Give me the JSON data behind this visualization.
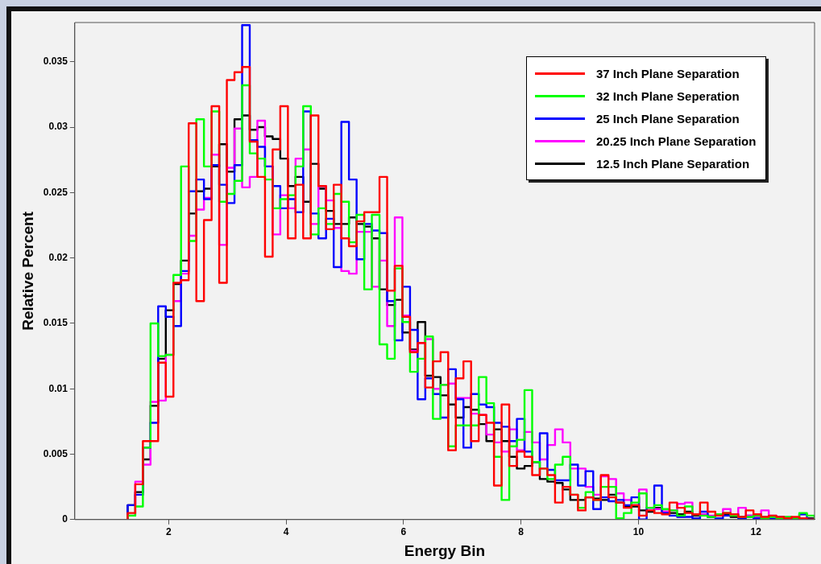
{
  "chart_data": {
    "type": "histogram",
    "xlabel": "Energy Bin",
    "ylabel": "Relative Percent",
    "xlim": [
      0.4,
      13
    ],
    "xticks": [
      2,
      4,
      6,
      8,
      10,
      12
    ],
    "ylim": [
      0,
      0.038
    ],
    "yticks": [
      0,
      0.005,
      0.01,
      0.015,
      0.02,
      0.025,
      0.03,
      0.035
    ],
    "grid": false,
    "legend": "top right",
    "bins": [
      1.3,
      1.43,
      1.56,
      1.69,
      1.82,
      1.95,
      2.08,
      2.21,
      2.34,
      2.47,
      2.6,
      2.73,
      2.86,
      2.99,
      3.12,
      3.25,
      3.38,
      3.51,
      3.64,
      3.77,
      3.9,
      4.03,
      4.16,
      4.29,
      4.42,
      4.55,
      4.68,
      4.81,
      4.94,
      5.07,
      5.2,
      5.33,
      5.46,
      5.59,
      5.72,
      5.85,
      5.98,
      6.11,
      6.24,
      6.37,
      6.5,
      6.63,
      6.76,
      6.89,
      7.02,
      7.15,
      7.28,
      7.41,
      7.54,
      7.67,
      7.8,
      7.93,
      8.06,
      8.19,
      8.32,
      8.45,
      8.58,
      8.71,
      8.84,
      8.97,
      9.1,
      9.23,
      9.36,
      9.49,
      9.62,
      9.75,
      9.88,
      10.01,
      10.14,
      10.27,
      10.4,
      10.53,
      10.66,
      10.79,
      10.92,
      11.05,
      11.18,
      11.31,
      11.44,
      11.57,
      11.7,
      11.83,
      11.96,
      12.09,
      12.22,
      12.35,
      12.48,
      12.61,
      12.74,
      12.87,
      13.0
    ],
    "series": [
      {
        "name": "37 Inch Plane Separation",
        "color": "#ff0000",
        "values": [
          0.0005,
          0.0027,
          0.006,
          0.006,
          0.012,
          0.0094,
          0.0181,
          0.0183,
          0.0303,
          0.0167,
          0.0229,
          0.0316,
          0.0181,
          0.0336,
          0.0342,
          0.0346,
          0.0289,
          0.0262,
          0.0201,
          0.0283,
          0.0316,
          0.0215,
          0.0256,
          0.0215,
          0.0309,
          0.0255,
          0.0222,
          0.0256,
          0.0215,
          0.0209,
          0.0228,
          0.0235,
          0.0235,
          0.0262,
          0.0175,
          0.0194,
          0.0155,
          0.0128,
          0.0135,
          0.0101,
          0.0121,
          0.0128,
          0.0053,
          0.0108,
          0.0121,
          0.006,
          0.008,
          0.0074,
          0.0026,
          0.0088,
          0.0041,
          0.0052,
          0.0048,
          0.0034,
          0.0039,
          0.0034,
          0.0013,
          0.0025,
          0.0019,
          0.0007,
          0.0017,
          0.0015,
          0.0034,
          0.0017,
          0.0013,
          0.0009,
          0.0011,
          0.0003,
          0.0007,
          0.0005,
          0.0004,
          0.0013,
          0.0009,
          0.0005,
          0.0004,
          0.0013,
          0.0006,
          0.0003,
          0.0005,
          0.0004,
          0.0002,
          0.0007,
          0.0004,
          0.0002,
          0.0003,
          0.0002,
          0.0001,
          0.0002,
          0.0001,
          0
        ]
      },
      {
        "name": "32 Inch Plane Seperation",
        "color": "#00ff00",
        "values": [
          0.0003,
          0.001,
          0.0055,
          0.015,
          0.0125,
          0.0126,
          0.0187,
          0.027,
          0.0213,
          0.0306,
          0.027,
          0.0312,
          0.0243,
          0.0249,
          0.0259,
          0.0332,
          0.028,
          0.0276,
          0.026,
          0.0238,
          0.0245,
          0.0248,
          0.027,
          0.0316,
          0.0218,
          0.0238,
          0.0226,
          0.0249,
          0.0243,
          0.0212,
          0.0233,
          0.0176,
          0.0233,
          0.0134,
          0.0123,
          0.0192,
          0.0151,
          0.0113,
          0.0123,
          0.014,
          0.0077,
          0.0103,
          0.0056,
          0.0072,
          0.0072,
          0.0072,
          0.0109,
          0.0089,
          0.0048,
          0.0015,
          0.0056,
          0.0061,
          0.0099,
          0.0044,
          0.0039,
          0.0031,
          0.0042,
          0.0048,
          0.0019,
          0.0009,
          0.0021,
          0.0015,
          0.0025,
          0.0025,
          0.0001,
          0.0005,
          0.0013,
          0.002,
          0.0009,
          0.0011,
          0.0008,
          0.0007,
          0.0003,
          0.001,
          0.0004,
          0.0003,
          0.0002,
          0.0004,
          0.0005,
          0.0003,
          0.0002,
          0.0002,
          0.0003,
          0.0001,
          0.0002,
          0.0001,
          0.0002,
          0.0001,
          0.0005,
          0.0003
        ]
      },
      {
        "name": "25 Inch Plane Separation",
        "color": "#0000ff",
        "values": [
          0.0011,
          0.0019,
          0.0055,
          0.0074,
          0.0163,
          0.0155,
          0.0148,
          0.019,
          0.0251,
          0.026,
          0.0245,
          0.0271,
          0.0256,
          0.0242,
          0.0271,
          0.0378,
          0.029,
          0.0285,
          0.027,
          0.0255,
          0.0238,
          0.0245,
          0.0235,
          0.0312,
          0.0234,
          0.0215,
          0.023,
          0.0193,
          0.0304,
          0.026,
          0.0199,
          0.0226,
          0.0221,
          0.0219,
          0.0167,
          0.0137,
          0.0178,
          0.0145,
          0.0092,
          0.0108,
          0.0096,
          0.0078,
          0.0115,
          0.0092,
          0.0055,
          0.0096,
          0.0088,
          0.0086,
          0.0074,
          0.0071,
          0.006,
          0.0077,
          0.0052,
          0.0044,
          0.0066,
          0.0038,
          0.003,
          0.003,
          0.0042,
          0.0026,
          0.0037,
          0.0008,
          0.0017,
          0.0014,
          0.0015,
          0.0011,
          0.0017,
          0,
          0.0009,
          0.0026,
          0.0005,
          0.0003,
          0.0002,
          0.0002,
          0.0001,
          0.0006,
          0.0002,
          0.0001,
          0.0003,
          0.0004,
          0.0001,
          0.0002,
          0.0001,
          0.0002,
          0.0001,
          0.0002,
          0.0001,
          0.0001,
          0.0004,
          0
        ]
      },
      {
        "name": "20.25 Inch Plane Separation",
        "color": "#ff00ff",
        "values": [
          0.0003,
          0.0029,
          0.0042,
          0.009,
          0.0091,
          0.0126,
          0.0167,
          0.0188,
          0.0217,
          0.0237,
          0.0246,
          0.0279,
          0.021,
          0.0269,
          0.0299,
          0.0254,
          0.0262,
          0.0305,
          0.027,
          0.0218,
          0.0248,
          0.0238,
          0.0276,
          0.0283,
          0.0226,
          0.0255,
          0.0244,
          0.0223,
          0.019,
          0.0188,
          0.022,
          0.022,
          0.0178,
          0.0198,
          0.0148,
          0.0231,
          0.0156,
          0.0129,
          0.0135,
          0.0138,
          0.01,
          0.0103,
          0.0104,
          0.0093,
          0.0093,
          0.0081,
          0.008,
          0.0065,
          0.0059,
          0.0052,
          0.0069,
          0.0053,
          0.0067,
          0.0059,
          0.0046,
          0.0057,
          0.0069,
          0.0059,
          0.0039,
          0.0039,
          0.0025,
          0.0019,
          0.0033,
          0.0031,
          0.002,
          0.0015,
          0.0011,
          0.0023,
          0.0009,
          0.0008,
          0.0006,
          0.0007,
          0.0012,
          0.0013,
          0.0004,
          0.0004,
          0.0003,
          0.0003,
          0.0008,
          0.0003,
          0.0009,
          0.0003,
          0.0002,
          0.0007,
          0.0003,
          0.0002,
          0.0002,
          0.0001,
          0.0001,
          0
        ]
      },
      {
        "name": "12.5 Inch Plane Separation",
        "color": "#000000",
        "values": [
          0.0011,
          0.0021,
          0.0046,
          0.0087,
          0.0123,
          0.016,
          0.018,
          0.0198,
          0.0234,
          0.0251,
          0.0253,
          0.027,
          0.0287,
          0.0266,
          0.0306,
          0.0309,
          0.0298,
          0.03,
          0.0293,
          0.0291,
          0.0276,
          0.0255,
          0.0262,
          0.0243,
          0.0272,
          0.0253,
          0.0236,
          0.0226,
          0.0226,
          0.0231,
          0.0226,
          0.0224,
          0.0215,
          0.0176,
          0.0164,
          0.0168,
          0.0143,
          0.013,
          0.0151,
          0.011,
          0.0109,
          0.0095,
          0.0088,
          0.0078,
          0.0086,
          0.0084,
          0.0073,
          0.006,
          0.0069,
          0.006,
          0.0048,
          0.0039,
          0.0041,
          0.0044,
          0.0031,
          0.0029,
          0.0028,
          0.0023,
          0.0015,
          0.0015,
          0.0017,
          0.0016,
          0.0015,
          0.0019,
          0.0013,
          0.001,
          0.001,
          0.0007,
          0.0006,
          0.0009,
          0.0006,
          0.0005,
          0.0004,
          0.0006,
          0.0003,
          0.0004,
          0.0002,
          0.0003,
          0.0004,
          0.0002,
          0.0002,
          0.0003,
          0.0002,
          0.0001,
          0.0002,
          0.0001,
          0.0001,
          0.0001,
          0.0001,
          0.0001
        ]
      }
    ]
  }
}
